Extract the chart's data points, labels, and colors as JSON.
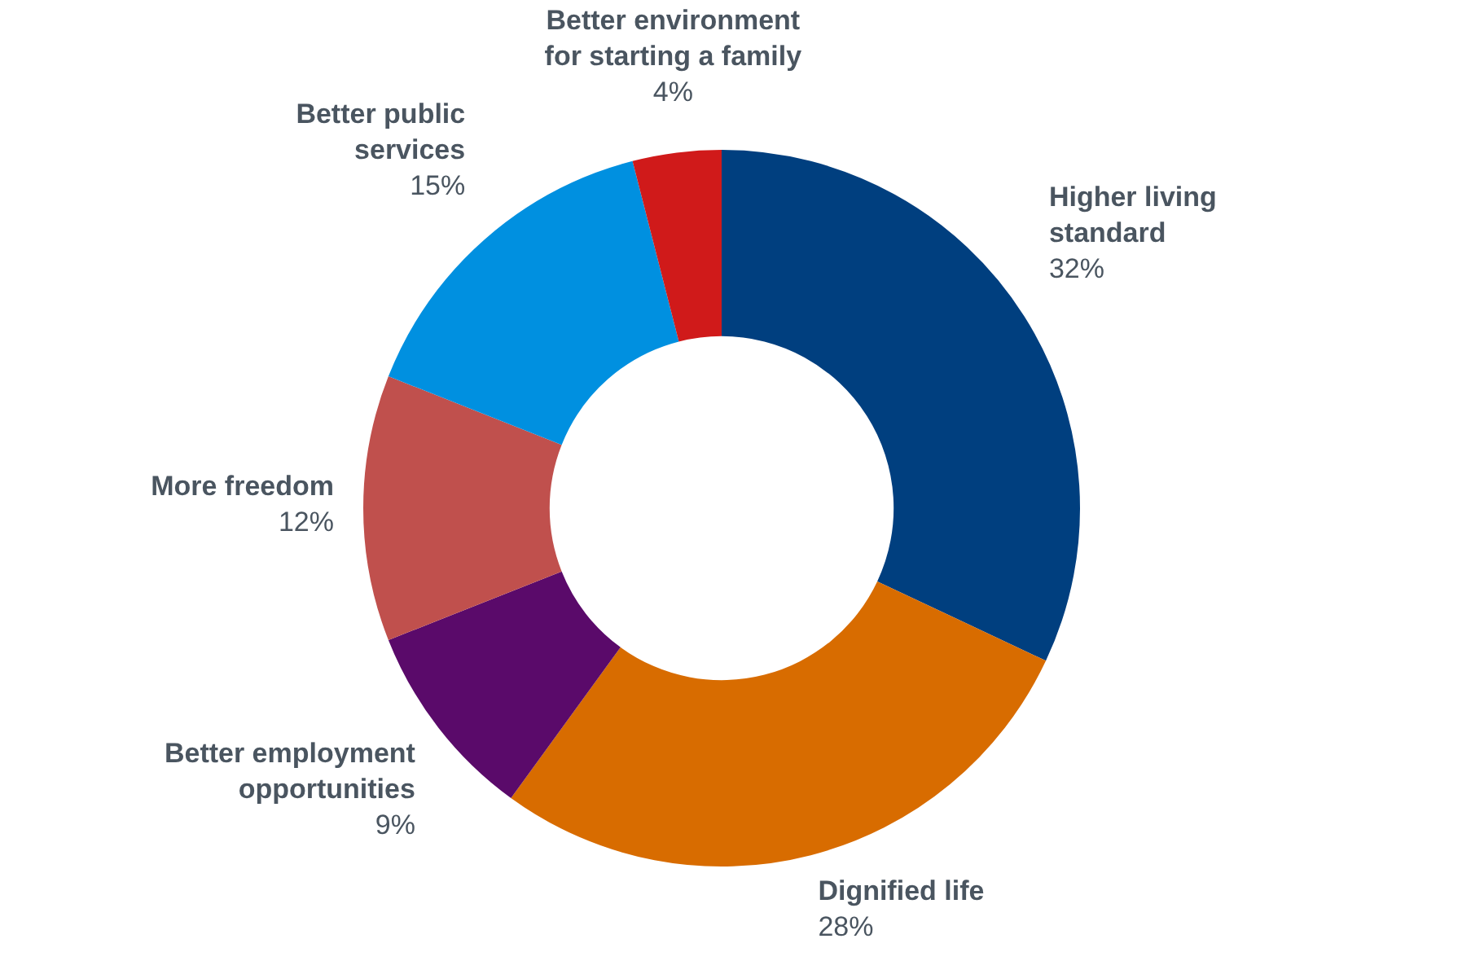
{
  "chart_data": {
    "type": "donut",
    "categories": [
      "Higher living standard",
      "Dignified life",
      "Better employment opportunities",
      "More freedom",
      "Better public services",
      "Better environment for starting a family"
    ],
    "values": [
      32,
      28,
      9,
      12,
      15,
      4
    ],
    "value_labels": [
      "32%",
      "28%",
      "9%",
      "12%",
      "15%",
      "4%"
    ],
    "colors": [
      "#003f7f",
      "#d86c00",
      "#5a0a6a",
      "#c0504d",
      "#0090e0",
      "#d01a1a"
    ],
    "legend": false
  }
}
